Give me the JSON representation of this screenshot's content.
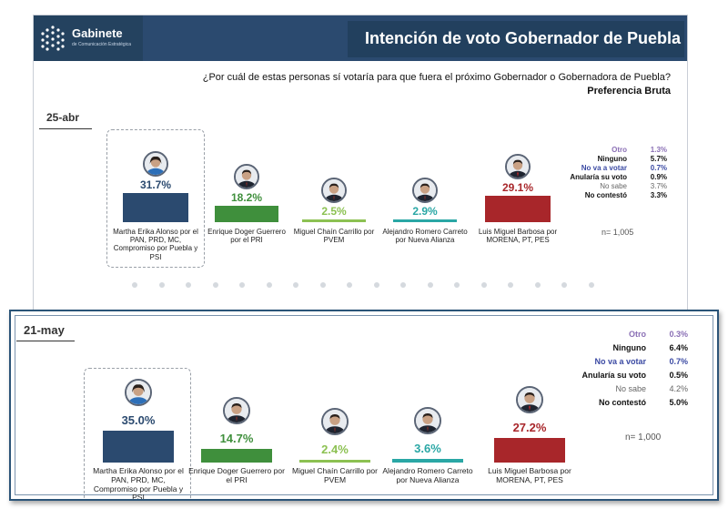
{
  "header": {
    "brand": "Gabinete",
    "brand_sub": "de Comunicación Estratégica",
    "title": "Intención de voto Gobernador de Puebla"
  },
  "question": "¿Por cuál de estas personas sí votaría para que fuera el próximo Gobernador o Gobernadora de Puebla?",
  "subtitle": "Preferencia Bruta",
  "colors": {
    "pan": "#2b4a6f",
    "pri": "#3f8f3c",
    "pvem": "#8cc152",
    "na": "#2aa7a5",
    "morena": "#a8262a",
    "otro": "#8a6fb5",
    "no_va": "#3b4aa3"
  },
  "chart_data": [
    {
      "type": "bar",
      "date": "25-abr",
      "categories": [
        "Martha Erika Alonso por el PAN, PRD, MC, Compromiso por Puebla y PSI",
        "Enrique Doger Guerrero por el PRI",
        "Miguel Chaín Carrillo por PVEM",
        "Alejandro Romero Carreto por Nueva Alianza",
        "Luis Miguel Barbosa por MORENA, PT, PES"
      ],
      "values": [
        31.7,
        18.2,
        2.5,
        2.9,
        29.1
      ],
      "labels": [
        "31.7%",
        "18.2%",
        "2.5%",
        "2.9%",
        "29.1%"
      ],
      "others": [
        {
          "label": "Otro",
          "value": "1.3%"
        },
        {
          "label": "Ninguno",
          "value": "5.7%"
        },
        {
          "label": "No va a votar",
          "value": "0.7%"
        },
        {
          "label": "Anularía su voto",
          "value": "0.9%"
        },
        {
          "label": "No sabe",
          "value": "3.7%"
        },
        {
          "label": "No contestó",
          "value": "3.3%"
        }
      ],
      "n": "n= 1,005"
    },
    {
      "type": "bar",
      "date": "21-may",
      "categories": [
        "Martha Erika Alonso por el PAN, PRD, MC, Compromiso por Puebla y PSI",
        "Enrique Doger Guerrero por el PRI",
        "Miguel Chaín Carrillo por PVEM",
        "Alejandro Romero Carreto por Nueva Alianza",
        "Luis Miguel Barbosa por MORENA, PT, PES"
      ],
      "values": [
        35.0,
        14.7,
        2.4,
        3.6,
        27.2
      ],
      "labels": [
        "35.0%",
        "14.7%",
        "2.4%",
        "3.6%",
        "27.2%"
      ],
      "others": [
        {
          "label": "Otro",
          "value": "0.3%"
        },
        {
          "label": "Ninguno",
          "value": "6.4%"
        },
        {
          "label": "No va a votar",
          "value": "0.7%"
        },
        {
          "label": "Anularía su voto",
          "value": "0.5%"
        },
        {
          "label": "No sabe",
          "value": "4.2%"
        },
        {
          "label": "No contestó",
          "value": "5.0%"
        }
      ],
      "n": "n= 1,000"
    }
  ]
}
